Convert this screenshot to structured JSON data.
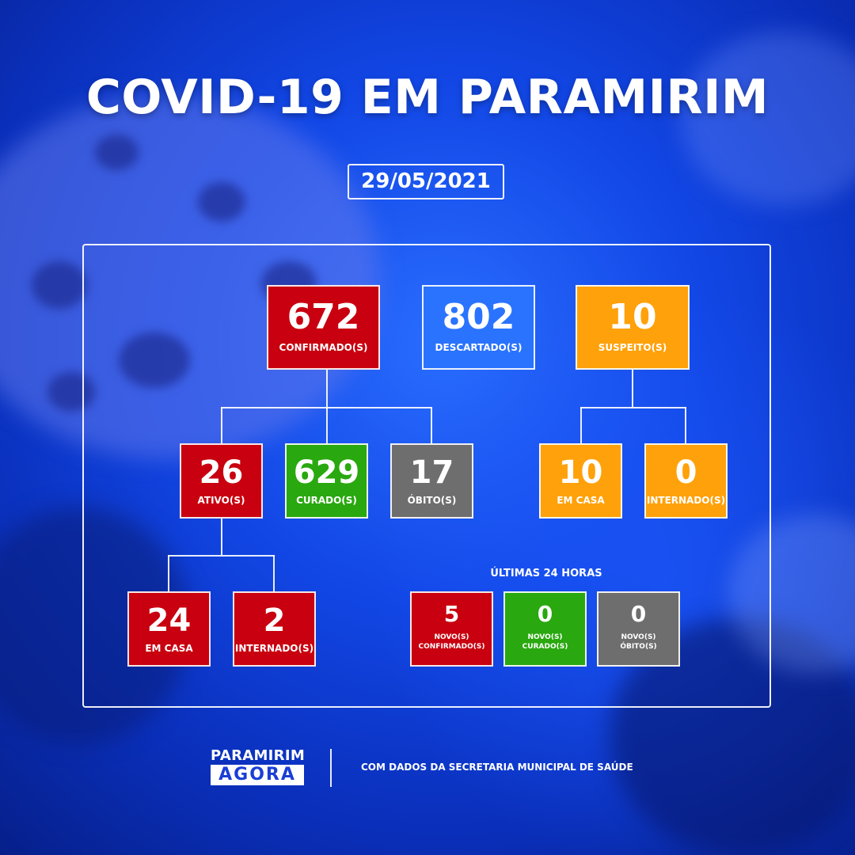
{
  "title": "COVID-19 EM PARAMIRIM",
  "date": "29/05/2021",
  "confirmados": {
    "value": "672",
    "label": "CONFIRMADO(S)"
  },
  "descartados": {
    "value": "802",
    "label": "DESCARTADO(S)"
  },
  "suspeitos": {
    "value": "10",
    "label": "SUSPEITO(S)"
  },
  "ativos": {
    "value": "26",
    "label": "ATIVO(S)"
  },
  "curados": {
    "value": "629",
    "label": "CURADO(S)"
  },
  "obitos": {
    "value": "17",
    "label": "ÓBITO(S)"
  },
  "suspeitos_em_casa": {
    "value": "10",
    "label": "EM CASA"
  },
  "suspeitos_internados": {
    "value": "0",
    "label": "INTERNADO(S)"
  },
  "ativos_em_casa": {
    "value": "24",
    "label": "EM CASA"
  },
  "ativos_internados": {
    "value": "2",
    "label": "INTERNADO(S)"
  },
  "ultimas_24h": {
    "title": "ÚLTIMAS 24 HORAS",
    "novos_confirmados": {
      "value": "5",
      "label_line1": "NOVO(S)",
      "label_line2": "CONFIRMADO(S)"
    },
    "novos_curados": {
      "value": "0",
      "label_line1": "NOVO(S)",
      "label_line2": "CURADO(S)"
    },
    "novos_obitos": {
      "value": "0",
      "label_line1": "NOVO(S)",
      "label_line2": "ÓBITO(S)"
    }
  },
  "footer": {
    "logo_top": "PARAMIRIM",
    "logo_bottom": "AGORA",
    "source": "COM DADOS DA SECRETARIA MUNICIPAL DE SAÚDE"
  },
  "colors": {
    "red": "#c8000f",
    "green": "#29a80f",
    "gray": "#6e6e6e",
    "orange": "#ffa10a",
    "blue": "#2a73ff",
    "background": "#1247e6"
  }
}
